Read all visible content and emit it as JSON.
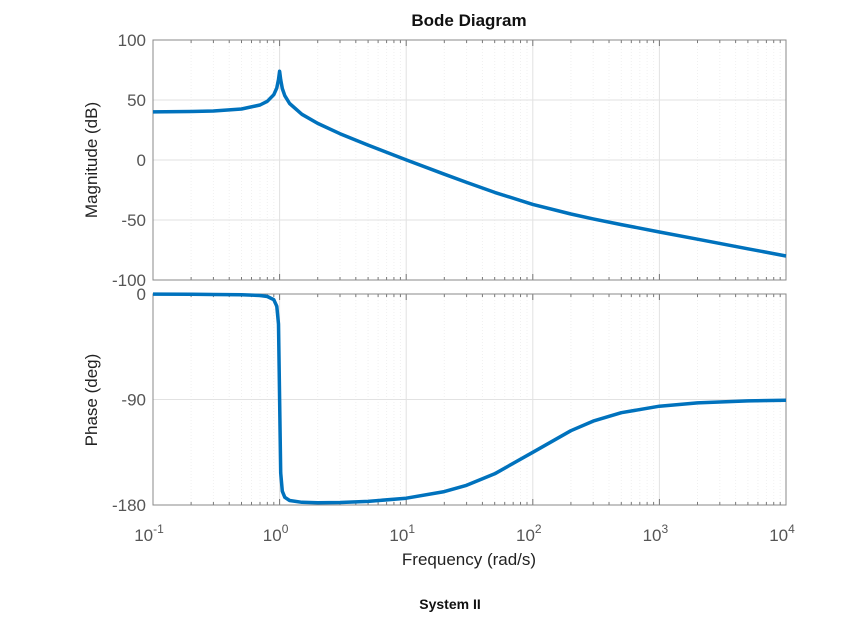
{
  "chart_data": {
    "type": "line",
    "title": "Bode Diagram",
    "caption": "System II",
    "xlabel": "Frequency  (rad/s)",
    "xscale": "log",
    "xlim": [
      0.1,
      10000
    ],
    "x_ticks": [
      {
        "base": "10",
        "exp": "-1"
      },
      {
        "base": "10",
        "exp": "0"
      },
      {
        "base": "10",
        "exp": "1"
      },
      {
        "base": "10",
        "exp": "2"
      },
      {
        "base": "10",
        "exp": "3"
      },
      {
        "base": "10",
        "exp": "4"
      }
    ],
    "grid": true,
    "line_color": "#0072BD",
    "x": [
      0.1,
      0.2,
      0.3,
      0.5,
      0.7,
      0.8,
      0.9,
      0.95,
      0.98,
      1.0,
      1.02,
      1.05,
      1.1,
      1.2,
      1.5,
      2,
      3,
      5,
      10,
      20,
      30,
      50,
      100,
      200,
      300,
      500,
      1000,
      2000,
      5000,
      10000
    ],
    "panels": [
      {
        "ylabel": "Magnitude (dB)",
        "ylim": [
          -100,
          100
        ],
        "y_ticks": [
          "100",
          "50",
          "0",
          "-50",
          "-100"
        ],
        "y_tick_values": [
          100,
          50,
          0,
          -50,
          -100
        ],
        "values": [
          40.1,
          40.4,
          40.8,
          42.5,
          45.8,
          48.9,
          54.4,
          60.1,
          67.1,
          74.0,
          66.9,
          59.6,
          53.6,
          47.1,
          38.1,
          30.5,
          21.9,
          12.4,
          0.1,
          -11.8,
          -18.7,
          -27.0,
          -37.0,
          -45.0,
          -49.1,
          -53.8,
          -60.0,
          -66.0,
          -74.0,
          -80.0
        ]
      },
      {
        "ylabel": "Phase (deg)",
        "ylim": [
          -180,
          0
        ],
        "y_ticks": [
          "0",
          "-90",
          "-180"
        ],
        "y_tick_values": [
          0,
          -90,
          -180
        ],
        "values": [
          -0.1,
          -0.2,
          -0.4,
          -0.7,
          -1.3,
          -2.1,
          -4.9,
          -10.5,
          -25.7,
          -89.4,
          -152.6,
          -168.2,
          -173.4,
          -176.2,
          -177.7,
          -178.1,
          -177.9,
          -176.9,
          -174.2,
          -168.6,
          -163.2,
          -153.4,
          -135.0,
          -116.6,
          -108.4,
          -101.3,
          -95.7,
          -92.9,
          -91.2,
          -90.6
        ]
      }
    ]
  }
}
